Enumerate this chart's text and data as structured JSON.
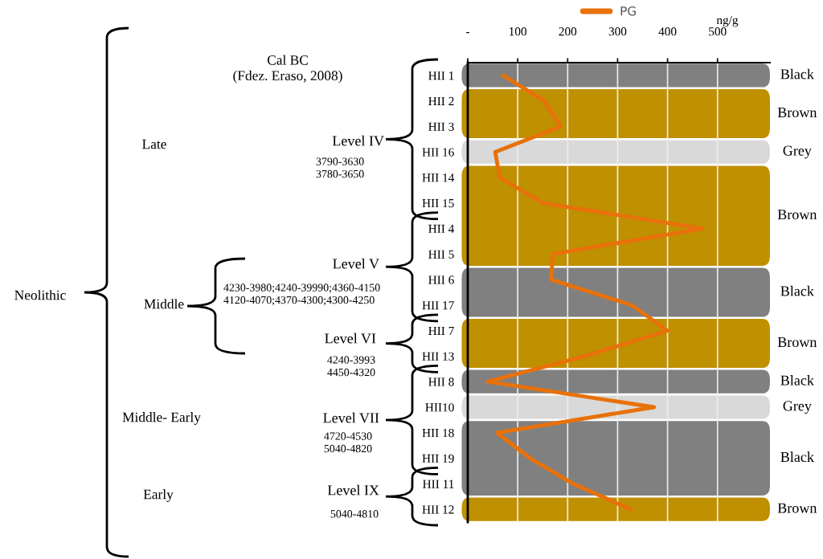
{
  "chart_data": {
    "type": "line",
    "orientation": "horizontal",
    "categories": [
      "HII 1",
      "HII 2",
      "HII 3",
      "HII 16",
      "HII 14",
      "HII 15",
      "HII 4",
      "HII 5",
      "HII 6",
      "HII 17",
      "HII 7",
      "HII 13",
      "HII 8",
      "HII10",
      "HII 18",
      "HII 19",
      "HII 11",
      "HII 12"
    ],
    "series": [
      {
        "name": "PG",
        "color": "#e8710a",
        "values": [
          71,
          153,
          186,
          55,
          64,
          150,
          470,
          170,
          167,
          328,
          400,
          235,
          40,
          373,
          58,
          125,
          211,
          326
        ]
      }
    ],
    "xlabel": "ng/g",
    "xlim": [
      0,
      605
    ],
    "xticks": [
      {
        "value": 0,
        "label": "-"
      },
      100,
      200,
      300,
      400,
      500
    ],
    "grid": "x",
    "legend": "top",
    "bands": [
      {
        "axis": "y",
        "from": "HII 1",
        "to": "HII 1",
        "label": "Black",
        "color": "#808080"
      },
      {
        "axis": "y",
        "from": "HII 2",
        "to": "HII 3",
        "label": "Brown",
        "color": "#bf9000"
      },
      {
        "axis": "y",
        "from": "HII 16",
        "to": "HII 16",
        "label": "Grey",
        "color": "#d9d9d9"
      },
      {
        "axis": "y",
        "from": "HII 14",
        "to": "HII 5",
        "label": "Brown",
        "color": "#bf9000"
      },
      {
        "axis": "y",
        "from": "HII 6",
        "to": "HII 17",
        "label": "Black",
        "color": "#808080"
      },
      {
        "axis": "y",
        "from": "HII 7",
        "to": "HII 13",
        "label": "Brown",
        "color": "#bf9000"
      },
      {
        "axis": "y",
        "from": "HII 8",
        "to": "HII 8",
        "label": "Black",
        "color": "#808080"
      },
      {
        "axis": "y",
        "from": "HII10",
        "to": "HII10",
        "label": "Grey",
        "color": "#d9d9d9"
      },
      {
        "axis": "y",
        "from": "HII 18",
        "to": "HII 11",
        "label": "Black",
        "color": "#808080"
      },
      {
        "axis": "y",
        "from": "HII 12",
        "to": "HII 12",
        "label": "Brown",
        "color": "#bf9000"
      }
    ],
    "annotations": [
      "Cal BC\n(Fdez. Eraso, 2008)",
      "Level IV",
      "3790-3630\n3780-3650",
      "Level V",
      "4230-3980;4240-39990;4360-4150\n4120-4070;4370-4300;4300-4250",
      "Level VI",
      "4240-3993\n4450-4320",
      "Level VII",
      "4720-4530\n5040-4820",
      "Level IX",
      "5040-4810",
      "Neolithic",
      "Late",
      "Middle",
      "Middle- Early",
      "Early"
    ]
  }
}
